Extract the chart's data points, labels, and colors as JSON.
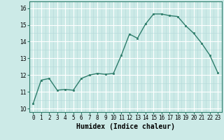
{
  "x": [
    0,
    1,
    2,
    3,
    4,
    5,
    6,
    7,
    8,
    9,
    10,
    11,
    12,
    13,
    14,
    15,
    16,
    17,
    18,
    19,
    20,
    21,
    22,
    23
  ],
  "y": [
    10.3,
    11.7,
    11.8,
    11.1,
    11.15,
    11.1,
    11.8,
    12.0,
    12.1,
    12.05,
    12.1,
    13.2,
    14.45,
    14.2,
    15.05,
    15.65,
    15.65,
    15.55,
    15.5,
    14.95,
    14.5,
    13.9,
    13.2,
    12.15
  ],
  "line_color": "#2e7d6b",
  "marker": "s",
  "markersize": 2.0,
  "linewidth": 1.0,
  "bg_color": "#cceae7",
  "grid_major_color": "#ffffff",
  "grid_minor_color": "#b2d8d8",
  "xlabel": "Humidex (Indice chaleur)",
  "xlabel_fontsize": 7,
  "yticks": [
    10,
    11,
    12,
    13,
    14,
    15,
    16
  ],
  "xtick_labels": [
    "0",
    "1",
    "2",
    "3",
    "4",
    "5",
    "6",
    "7",
    "8",
    "9",
    "10",
    "11",
    "12",
    "13",
    "14",
    "15",
    "16",
    "17",
    "18",
    "19",
    "20",
    "21",
    "22",
    "23"
  ],
  "ylim": [
    9.8,
    16.4
  ],
  "xlim": [
    -0.5,
    23.5
  ],
  "tick_fontsize": 5.5,
  "spine_color": "#2e7d6b"
}
